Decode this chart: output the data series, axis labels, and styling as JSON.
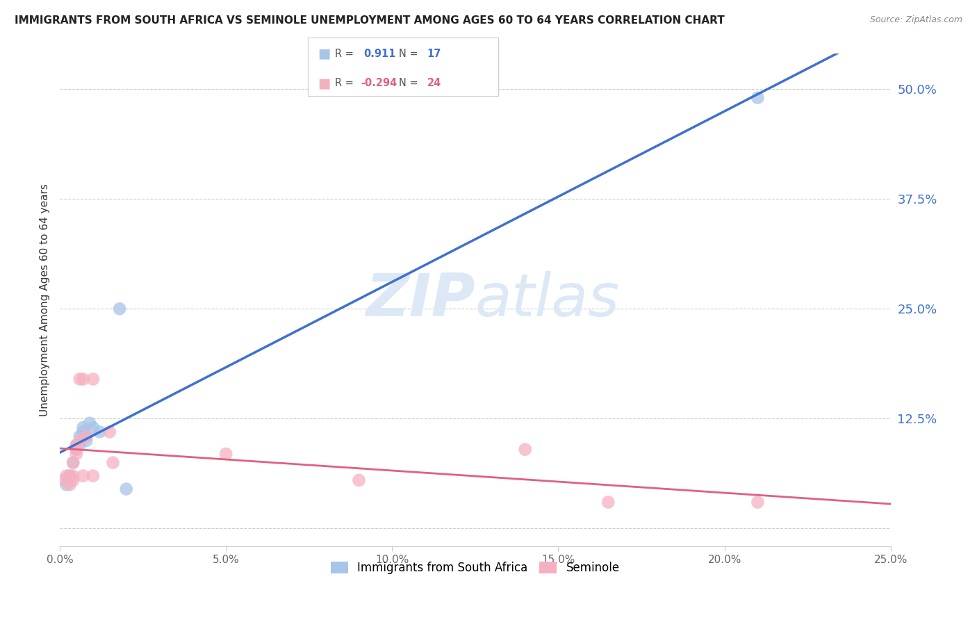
{
  "title": "IMMIGRANTS FROM SOUTH AFRICA VS SEMINOLE UNEMPLOYMENT AMONG AGES 60 TO 64 YEARS CORRELATION CHART",
  "source": "Source: ZipAtlas.com",
  "ylabel": "Unemployment Among Ages 60 to 64 years",
  "yticks": [
    0.0,
    0.125,
    0.25,
    0.375,
    0.5
  ],
  "ytick_labels": [
    "",
    "12.5%",
    "25.0%",
    "37.5%",
    "50.0%"
  ],
  "xticks": [
    0.0,
    0.05,
    0.1,
    0.15,
    0.2,
    0.25
  ],
  "xtick_labels": [
    "0.0%",
    "5.0%",
    "10.0%",
    "15.0%",
    "20.0%",
    "25.0%"
  ],
  "xlim": [
    0.0,
    0.25
  ],
  "ylim": [
    -0.02,
    0.54
  ],
  "blue_label": "Immigrants from South Africa",
  "pink_label": "Seminole",
  "blue_R": "0.911",
  "blue_N": "17",
  "pink_R": "-0.294",
  "pink_N": "24",
  "blue_color": "#a8c4e8",
  "pink_color": "#f5b0c0",
  "blue_line_color": "#4070d0",
  "pink_line_color": "#e06080",
  "background_color": "#ffffff",
  "watermark_color": "#dce8f5",
  "blue_points": [
    [
      0.002,
      0.05
    ],
    [
      0.003,
      0.06
    ],
    [
      0.004,
      0.075
    ],
    [
      0.005,
      0.09
    ],
    [
      0.005,
      0.095
    ],
    [
      0.006,
      0.095
    ],
    [
      0.006,
      0.105
    ],
    [
      0.007,
      0.11
    ],
    [
      0.007,
      0.115
    ],
    [
      0.008,
      0.1
    ],
    [
      0.008,
      0.105
    ],
    [
      0.009,
      0.12
    ],
    [
      0.01,
      0.115
    ],
    [
      0.012,
      0.11
    ],
    [
      0.018,
      0.25
    ],
    [
      0.02,
      0.045
    ],
    [
      0.21,
      0.49
    ]
  ],
  "pink_points": [
    [
      0.001,
      0.055
    ],
    [
      0.002,
      0.06
    ],
    [
      0.003,
      0.05
    ],
    [
      0.003,
      0.06
    ],
    [
      0.004,
      0.055
    ],
    [
      0.004,
      0.06
    ],
    [
      0.004,
      0.075
    ],
    [
      0.005,
      0.085
    ],
    [
      0.005,
      0.09
    ],
    [
      0.005,
      0.095
    ],
    [
      0.006,
      0.1
    ],
    [
      0.006,
      0.17
    ],
    [
      0.007,
      0.06
    ],
    [
      0.007,
      0.17
    ],
    [
      0.008,
      0.105
    ],
    [
      0.01,
      0.06
    ],
    [
      0.01,
      0.17
    ],
    [
      0.015,
      0.11
    ],
    [
      0.016,
      0.075
    ],
    [
      0.05,
      0.085
    ],
    [
      0.09,
      0.055
    ],
    [
      0.14,
      0.09
    ],
    [
      0.165,
      0.03
    ],
    [
      0.21,
      0.03
    ]
  ]
}
